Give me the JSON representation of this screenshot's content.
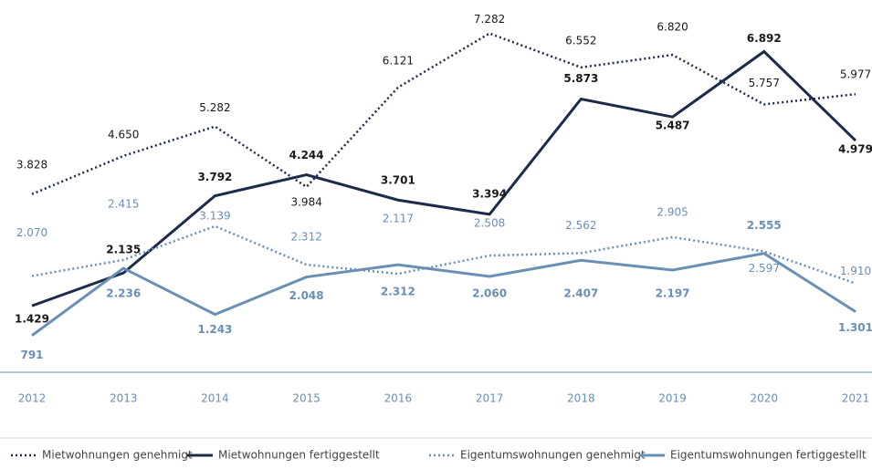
{
  "chart_data": {
    "type": "line",
    "x": [
      2012,
      2013,
      2014,
      2015,
      2016,
      2017,
      2018,
      2019,
      2020,
      2021
    ],
    "ylim": [
      0,
      8000
    ],
    "series": [
      {
        "name": "Mietwohnungen genehmigt",
        "color": "#1c2b4a",
        "style": "dotted",
        "values": [
          3828,
          4650,
          5282,
          3984,
          6121,
          7282,
          6552,
          6820,
          5757,
          5977
        ],
        "value_labels": [
          "3.828",
          "4.650",
          "5.282",
          "3.984",
          "6.121",
          "7.282",
          "6.552",
          "6.820",
          "5.757",
          "5.977"
        ]
      },
      {
        "name": "Mietwohnungen fertiggestellt",
        "color": "#1c2b4a",
        "style": "solid",
        "values": [
          1429,
          2135,
          3792,
          4244,
          3701,
          3394,
          5873,
          5487,
          6892,
          4979
        ],
        "value_labels": [
          "1.429",
          "2.135",
          "3.792",
          "4.244",
          "3.701",
          "3.394",
          "5.873",
          "5.487",
          "6.892",
          "4.979"
        ]
      },
      {
        "name": "Eigentumswohnungen genehmigt",
        "color": "#6a8fb5",
        "style": "dotted",
        "values": [
          2070,
          2415,
          3139,
          2312,
          2117,
          2508,
          2562,
          2905,
          2597,
          1910
        ],
        "value_labels": [
          "2.070",
          "2.415",
          "3.139",
          "2.312",
          "2.117",
          "2.508",
          "2.562",
          "2.905",
          "2.597",
          "1.910"
        ]
      },
      {
        "name": "Eigentumswohnungen fertiggestellt",
        "color": "#6a8fb5",
        "style": "solid",
        "values": [
          791,
          2236,
          1243,
          2048,
          2312,
          2060,
          2407,
          2197,
          2555,
          1301
        ],
        "value_labels": [
          "791",
          "2.236",
          "1.243",
          "2.048",
          "2.312",
          "2.060",
          "2.407",
          "2.197",
          "2.555",
          "1.301"
        ]
      }
    ]
  }
}
